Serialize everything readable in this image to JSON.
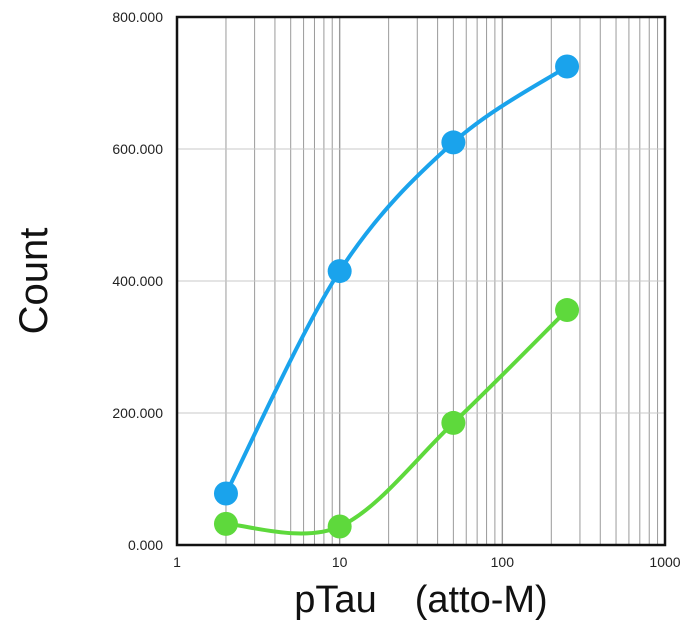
{
  "chart_data": {
    "type": "line",
    "title": "",
    "xlabel": "pTau　(atto-M)",
    "ylabel": "Count",
    "x_scale": "log",
    "xlim": [
      1,
      1000
    ],
    "ylim": [
      0,
      800000
    ],
    "x_ticks": [
      1,
      10,
      100,
      1000
    ],
    "x_tick_labels": [
      "1",
      "10",
      "100",
      "1000"
    ],
    "y_ticks": [
      0,
      200000,
      400000,
      600000,
      800000
    ],
    "y_tick_labels": [
      "0.000",
      "200.000",
      "400.000",
      "600.000",
      "800.000"
    ],
    "grid": {
      "x_minor": true,
      "y_major": true
    },
    "legend": "none",
    "series": [
      {
        "color": "#1aa3ec",
        "x": [
          2,
          10,
          50,
          250
        ],
        "y": [
          78000,
          415000,
          610000,
          725000
        ]
      },
      {
        "color": "#5ed93c",
        "x": [
          2,
          10,
          50,
          250
        ],
        "y": [
          32000,
          28000,
          185000,
          356000
        ]
      }
    ]
  }
}
